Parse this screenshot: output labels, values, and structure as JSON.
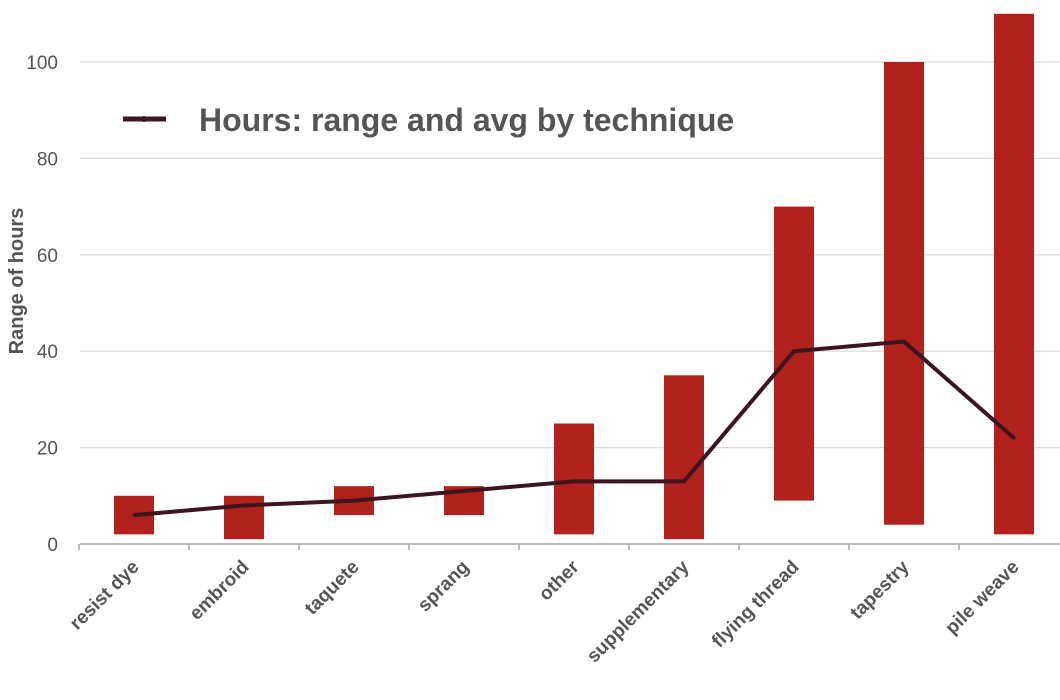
{
  "chart_data": {
    "type": "bar",
    "categories": [
      "resist dye",
      "embroid",
      "taquete",
      "sprang",
      "other",
      "supplementary",
      "flying thread",
      "tapestry",
      "pile weave"
    ],
    "series": [
      {
        "name": "Hours: range and avg by technique",
        "type": "line",
        "values": [
          6,
          8,
          9,
          11,
          13,
          13,
          40,
          42,
          22
        ]
      }
    ],
    "ranges": {
      "low": [
        2,
        1,
        6,
        6,
        2,
        1,
        9,
        4,
        2
      ],
      "high": [
        10,
        10,
        12,
        12,
        25,
        35,
        70,
        100,
        110
      ]
    },
    "ylabel": "Range of hours",
    "xlabel": "",
    "ylim": [
      0,
      110
    ],
    "yticks": [
      0,
      20,
      40,
      60,
      80,
      100
    ],
    "grid": true,
    "legend_position": "top-left",
    "colors": {
      "bar": "#b0221b",
      "line": "#3d1520",
      "grid": "#d9d9d9",
      "axis": "#bbbbbb",
      "text": "#555555"
    }
  }
}
